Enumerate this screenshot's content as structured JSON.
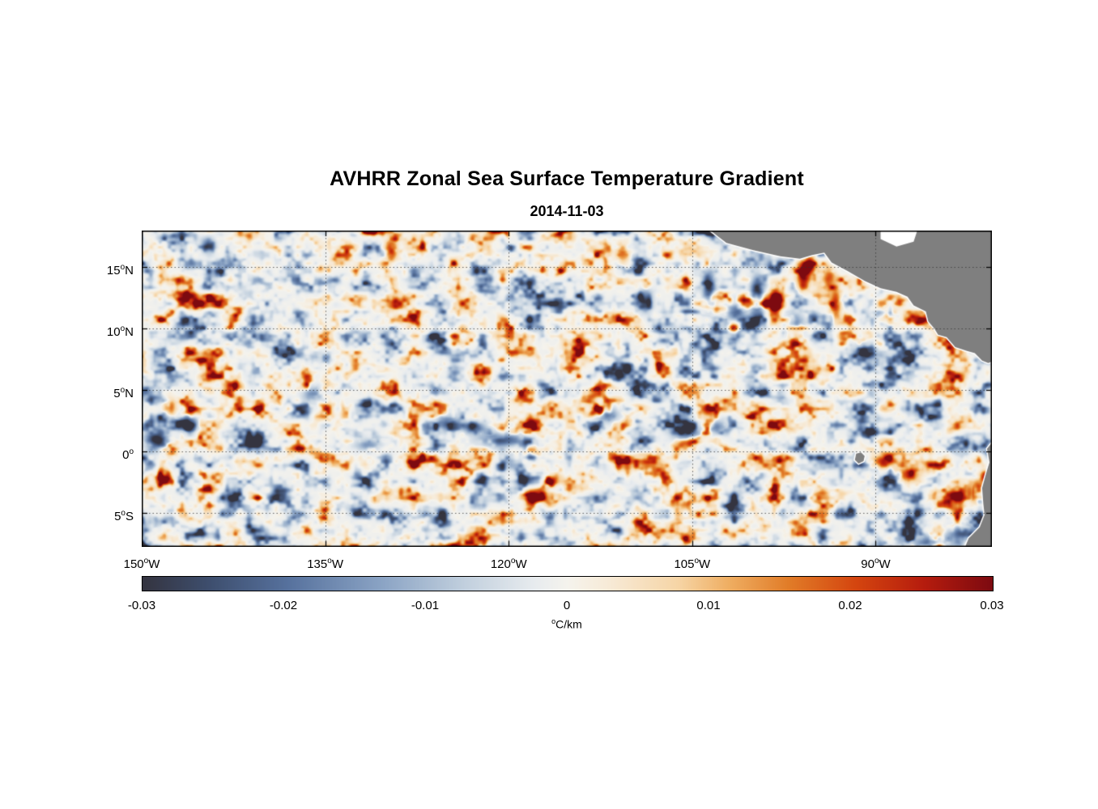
{
  "chart_data": {
    "type": "heatmap",
    "title": "AVHRR Zonal Sea Surface Temperature Gradient",
    "subtitle": "2014-11-03",
    "x_axis": {
      "range_lon": [
        -150,
        -80.5
      ],
      "ticks": [
        {
          "deg": "150",
          "hem": "W",
          "lon": -150
        },
        {
          "deg": "135",
          "hem": "W",
          "lon": -135
        },
        {
          "deg": "120",
          "hem": "W",
          "lon": -120
        },
        {
          "deg": "105",
          "hem": "W",
          "lon": -105
        },
        {
          "deg": "90",
          "hem": "W",
          "lon": -90
        }
      ]
    },
    "y_axis": {
      "range_lat": [
        -7.8,
        18
      ],
      "ticks": [
        {
          "deg": "15",
          "hem": "N",
          "lat": 15
        },
        {
          "deg": "10",
          "hem": "N",
          "lat": 10
        },
        {
          "deg": "5",
          "hem": "N",
          "lat": 5
        },
        {
          "deg": "0",
          "hem": "",
          "lat": 0
        },
        {
          "deg": "5",
          "hem": "S",
          "lat": -5
        }
      ]
    },
    "grid": {
      "show": true,
      "style": "dotted",
      "color": "rgba(50,50,50,0.75)"
    },
    "value_range": [
      -0.03,
      0.03
    ],
    "colorbar": {
      "unit_sup": "o",
      "unit": "C/km",
      "ticks": [
        {
          "t": 0,
          "label": "-0.03"
        },
        {
          "t": 0.1667,
          "label": "-0.02"
        },
        {
          "t": 0.3333,
          "label": "-0.01"
        },
        {
          "t": 0.5,
          "label": "0"
        },
        {
          "t": 0.6667,
          "label": "0.01"
        },
        {
          "t": 0.8333,
          "label": "0.02"
        },
        {
          "t": 1,
          "label": "0.03"
        }
      ]
    },
    "colormap": [
      [
        0,
        "#343440"
      ],
      [
        0.08,
        "#3e4f6f"
      ],
      [
        0.17,
        "#56719d"
      ],
      [
        0.28,
        "#8aa3c4"
      ],
      [
        0.38,
        "#c2d0de"
      ],
      [
        0.46,
        "#e7ebee"
      ],
      [
        0.5,
        "#f5f3ed"
      ],
      [
        0.55,
        "#f7ead6"
      ],
      [
        0.63,
        "#f6d5a6"
      ],
      [
        0.69,
        "#efae62"
      ],
      [
        0.76,
        "#e17c28"
      ],
      [
        0.84,
        "#d4450f"
      ],
      [
        0.92,
        "#b51c0e"
      ],
      [
        1,
        "#7d0a10"
      ]
    ],
    "land": {
      "color": "#7f7f7f",
      "outline": "#ffffff",
      "polygons": [
        {
          "name": "central-america",
          "gap": false,
          "points": [
            [
              -104.3,
              18.6
            ],
            [
              -102.2,
              17.0
            ],
            [
              -100.0,
              16.4
            ],
            [
              -97.8,
              15.9
            ],
            [
              -96.2,
              15.7
            ],
            [
              -95.2,
              16.0
            ],
            [
              -94.2,
              16.2
            ],
            [
              -93.6,
              15.4
            ],
            [
              -92.3,
              14.7
            ],
            [
              -90.9,
              13.9
            ],
            [
              -89.6,
              13.3
            ],
            [
              -88.3,
              13.0
            ],
            [
              -87.4,
              12.6
            ],
            [
              -86.9,
              11.9
            ],
            [
              -85.9,
              11.4
            ],
            [
              -85.7,
              10.6
            ],
            [
              -85.2,
              10.0
            ],
            [
              -84.9,
              9.5
            ],
            [
              -84.2,
              9.3
            ],
            [
              -83.5,
              8.5
            ],
            [
              -82.6,
              8.2
            ],
            [
              -81.9,
              8.0
            ],
            [
              -81.3,
              7.4
            ],
            [
              -80.8,
              7.2
            ],
            [
              -80.0,
              7.5
            ],
            [
              -80.0,
              18.6
            ]
          ]
        },
        {
          "name": "caribbean-gap",
          "gap": true,
          "points": [
            [
              -89.6,
              18.6
            ],
            [
              -86.4,
              18.6
            ],
            [
              -86.9,
              17.1
            ],
            [
              -88.3,
              16.7
            ],
            [
              -89.6,
              17.3
            ]
          ]
        },
        {
          "name": "south-america",
          "gap": false,
          "points": [
            [
              -80.0,
              1.3
            ],
            [
              -80.9,
              0.2
            ],
            [
              -80.7,
              -0.9
            ],
            [
              -81.0,
              -1.9
            ],
            [
              -81.3,
              -3.0
            ],
            [
              -81.2,
              -4.3
            ],
            [
              -81.1,
              -5.2
            ],
            [
              -81.5,
              -6.2
            ],
            [
              -82.4,
              -7.1
            ],
            [
              -82.9,
              -8.3
            ],
            [
              -80.0,
              -8.3
            ]
          ]
        },
        {
          "name": "galapagos-islands",
          "gap": false,
          "points": [
            [
              -91.6,
              -0.2
            ],
            [
              -91.2,
              -0.1
            ],
            [
              -90.9,
              -0.4
            ],
            [
              -91.0,
              -0.8
            ],
            [
              -91.4,
              -1.0
            ],
            [
              -91.7,
              -0.7
            ]
          ]
        }
      ]
    },
    "features": [
      [
        -95.4,
        15.2,
        0.034,
        0.5,
        0.7
      ],
      [
        -95.9,
        14.2,
        0.028,
        0.55,
        0.9
      ],
      [
        -98.2,
        12.3,
        0.032,
        0.45,
        1.2
      ],
      [
        -99.7,
        12.7,
        -0.033,
        0.5,
        1.4
      ],
      [
        -101.4,
        11.4,
        -0.02,
        0.8,
        0.8
      ],
      [
        -101.6,
        10.1,
        0.03,
        0.35,
        0.4
      ],
      [
        -103.6,
        13.2,
        -0.027,
        0.5,
        1.4
      ],
      [
        -96.6,
        10.4,
        -0.016,
        0.7,
        0.9
      ],
      [
        -93.3,
        12.0,
        0.024,
        0.45,
        1.3
      ],
      [
        -93.8,
        14.2,
        0.02,
        0.5,
        0.8
      ],
      [
        -88.8,
        11.0,
        0.016,
        0.7,
        0.7
      ],
      [
        -91.0,
        8.0,
        -0.014,
        0.8,
        0.8
      ],
      [
        -120.6,
        0.9,
        -0.024,
        1.7,
        0.55
      ],
      [
        -122.8,
        1.9,
        -0.018,
        1.0,
        0.5
      ],
      [
        -118.0,
        0.1,
        0.015,
        1.3,
        0.5
      ],
      [
        -146.3,
        2.3,
        -0.028,
        0.8,
        0.6
      ],
      [
        -147.7,
        3.6,
        0.02,
        0.5,
        0.7
      ],
      [
        -148.9,
        1.1,
        -0.022,
        0.8,
        0.5
      ],
      [
        -89.3,
        -0.8,
        0.026,
        0.9,
        0.5
      ],
      [
        -87.4,
        -1.9,
        0.022,
        1.0,
        0.6
      ],
      [
        -81.7,
        -3.4,
        0.034,
        0.5,
        0.9
      ],
      [
        -81.1,
        -2.1,
        0.024,
        0.4,
        0.5
      ],
      [
        -82.6,
        -6.9,
        -0.03,
        1.3,
        0.8
      ],
      [
        -85.6,
        -7.5,
        -0.02,
        1.3,
        0.6
      ],
      [
        -129.6,
        16.4,
        0.026,
        0.5,
        0.9
      ],
      [
        -144.6,
        16.8,
        -0.02,
        0.55,
        0.6
      ],
      [
        -110.7,
        16.2,
        0.018,
        0.5,
        0.8
      ],
      [
        -108.8,
        12.3,
        -0.02,
        0.55,
        0.9
      ],
      [
        -136.0,
        4.6,
        -0.016,
        0.8,
        0.6
      ],
      [
        -148.6,
        0.6,
        -0.024,
        0.9,
        0.6
      ],
      [
        -112.0,
        3.0,
        -0.018,
        0.9,
        0.6
      ],
      [
        -125.0,
        2.5,
        -0.016,
        0.9,
        0.6
      ],
      [
        -105.5,
        1.5,
        -0.018,
        1.2,
        0.6
      ],
      [
        -103.0,
        2.0,
        -0.016,
        0.8,
        0.5
      ],
      [
        -131.5,
        0.5,
        -0.014,
        1.0,
        0.5
      ]
    ],
    "noise": {
      "seed": 20141103,
      "octaves": [
        [
          28,
          22,
          1.0
        ],
        [
          12,
          10,
          0.55
        ],
        [
          5.5,
          5,
          0.3
        ]
      ],
      "exponent": 1.7,
      "amplitude": 0.04,
      "bias": -0.0008
    }
  }
}
